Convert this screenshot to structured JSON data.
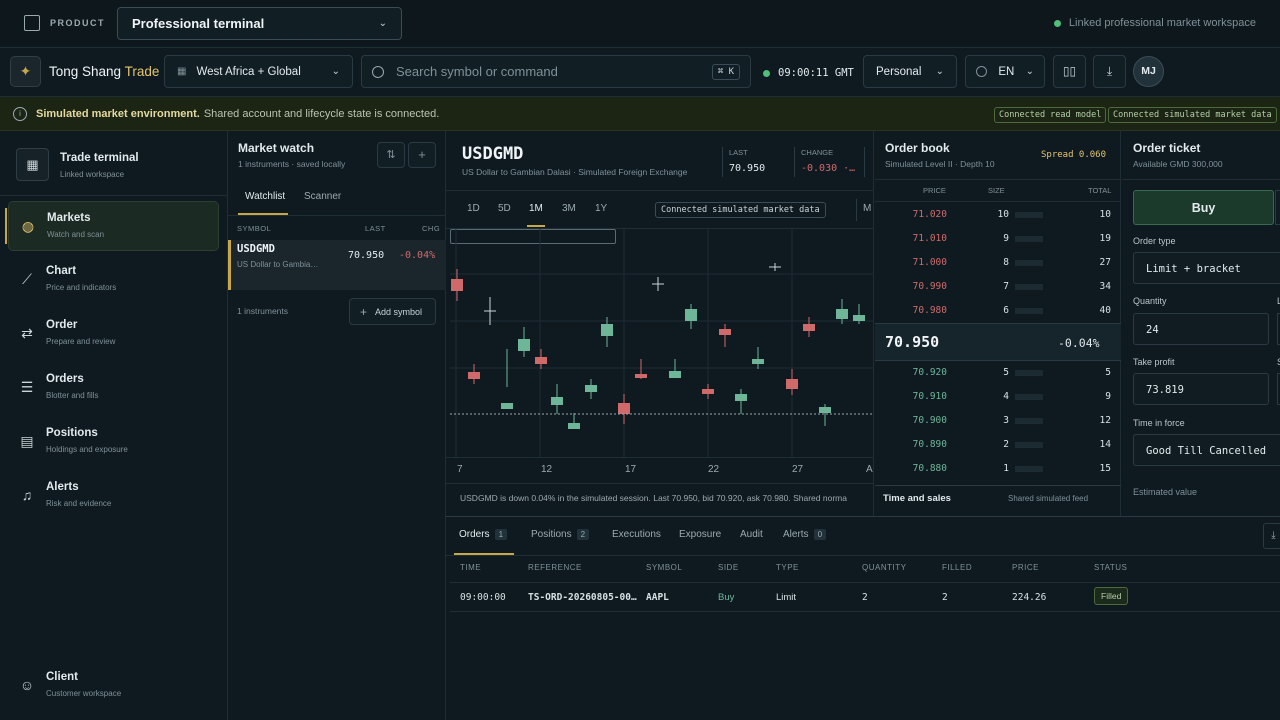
{
  "topbar": {
    "product_label": "PRODUCT",
    "product_value": "Professional terminal",
    "linked": "Linked professional market workspace"
  },
  "appbar": {
    "brand_a": "Tong Shang",
    "brand_b": "Trade",
    "region": "West Africa + Global",
    "search_placeholder": "Search symbol or command",
    "shortcut": "⌘ K",
    "clock": "09:00:11 GMT",
    "account": "Personal",
    "lang": "EN",
    "avatar": "MJ"
  },
  "banner": {
    "bold": "Simulated market environment.",
    "text": "Shared account and lifecycle state is connected.",
    "pill1": "Connected read model",
    "pill2": "Connected simulated market data"
  },
  "sidebar": {
    "head_title": "Trade terminal",
    "head_sub": "Linked workspace",
    "items": [
      {
        "title": "Markets",
        "sub": "Watch and scan"
      },
      {
        "title": "Chart",
        "sub": "Price and indicators"
      },
      {
        "title": "Order",
        "sub": "Prepare and review"
      },
      {
        "title": "Orders",
        "sub": "Blotter and fills"
      },
      {
        "title": "Positions",
        "sub": "Holdings and exposure"
      },
      {
        "title": "Alerts",
        "sub": "Risk and evidence"
      }
    ],
    "client_title": "Client",
    "client_sub": "Customer workspace"
  },
  "watch": {
    "title": "Market watch",
    "sub": "1 instruments · saved locally",
    "tab1": "Watchlist",
    "tab2": "Scanner",
    "col_symbol": "SYMBOL",
    "col_last": "LAST",
    "col_chg": "CHG",
    "row": {
      "symbol": "USDGMD",
      "desc": "US Dollar to Gambia…",
      "last": "70.950",
      "chg": "-0.04%"
    },
    "count": "1 instruments",
    "add": "Add symbol"
  },
  "chart": {
    "symbol": "USDGMD",
    "desc": "US Dollar to Gambian Dalasi · Simulated Foreign Exchange",
    "last_label": "LAST",
    "last": "70.950",
    "change_label": "CHANGE",
    "change": "-0.030 ·…",
    "ranges": [
      "1D",
      "5D",
      "1M",
      "3M",
      "1Y"
    ],
    "active_range": "1M",
    "status": "Connected simulated market data",
    "more": "M",
    "xticks": [
      "7",
      "12",
      "17",
      "22",
      "27",
      "A"
    ],
    "summary": "USDGMD is down 0.04% in the simulated session. Last 70.950, bid 70.920, ask 70.980. Shared norma"
  },
  "book": {
    "title": "Order book",
    "sub": "Simulated Level II · Depth 10",
    "spread": "Spread 0.060",
    "col_price": "PRICE",
    "col_size": "SIZE",
    "col_total": "TOTAL",
    "asks": [
      {
        "p": "71.020",
        "s": "10",
        "t": "10"
      },
      {
        "p": "71.010",
        "s": "9",
        "t": "19"
      },
      {
        "p": "71.000",
        "s": "8",
        "t": "27"
      },
      {
        "p": "70.990",
        "s": "7",
        "t": "34"
      },
      {
        "p": "70.980",
        "s": "6",
        "t": "40"
      }
    ],
    "mid": "70.950",
    "mid_chg": "-0.04%",
    "bids": [
      {
        "p": "70.920",
        "s": "5",
        "t": "5"
      },
      {
        "p": "70.910",
        "s": "4",
        "t": "9"
      },
      {
        "p": "70.900",
        "s": "3",
        "t": "12"
      },
      {
        "p": "70.890",
        "s": "2",
        "t": "14"
      },
      {
        "p": "70.880",
        "s": "1",
        "t": "15"
      }
    ],
    "tns": "Time and sales",
    "tns_sub": "Shared simulated feed"
  },
  "ticket": {
    "title": "Order ticket",
    "sub": "Available GMD 300,000",
    "buy": "Buy",
    "type_label": "Order type",
    "type": "Limit + bracket",
    "qty_label": "Quantity",
    "qty": "24",
    "l_label": "L",
    "tp_label": "Take profit",
    "tp": "73.819",
    "s_label": "S",
    "tif_label": "Time in force",
    "tif": "Good Till Cancelled",
    "est_label": "Estimated value"
  },
  "blotter": {
    "tabs": [
      {
        "label": "Orders",
        "count": "1"
      },
      {
        "label": "Positions",
        "count": "2"
      },
      {
        "label": "Executions"
      },
      {
        "label": "Exposure"
      },
      {
        "label": "Audit"
      },
      {
        "label": "Alerts",
        "count": "0"
      }
    ],
    "cols": [
      "TIME",
      "REFERENCE",
      "SYMBOL",
      "SIDE",
      "TYPE",
      "QUANTITY",
      "FILLED",
      "PRICE",
      "STATUS"
    ],
    "row": [
      "09:00:00",
      "TS-ORD-20260805-00…",
      "AAPL",
      "Buy",
      "Limit",
      "2",
      "2",
      "224.26",
      "Filled"
    ]
  },
  "chart_data": {
    "type": "candlestick",
    "symbol": "USDGMD",
    "xticks": [
      "7",
      "12",
      "17",
      "22",
      "27",
      "A"
    ],
    "colors": {
      "up": "#6fb598",
      "down": "#d06a6a",
      "neutral": "#c9d4d8"
    }
  }
}
